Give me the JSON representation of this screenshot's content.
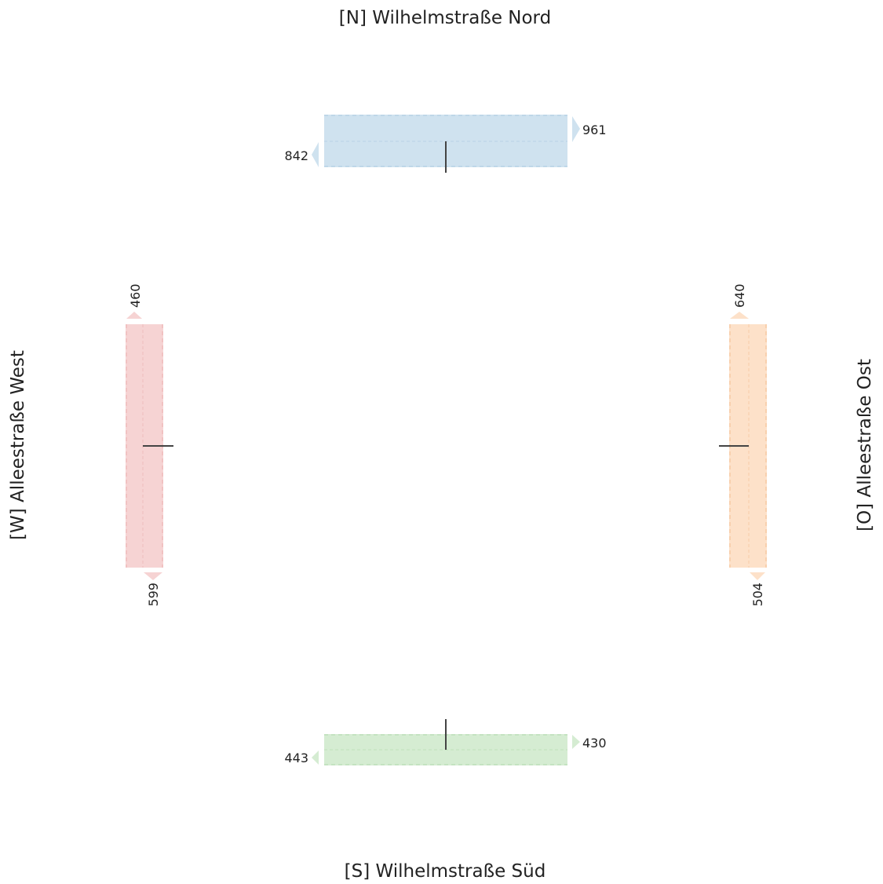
{
  "arms": {
    "north": {
      "title": "[N] Wilhelmstraße Nord",
      "color": "#cfe2ef",
      "edge_color": "#b9d3e6",
      "count_in": "842",
      "count_out": "961"
    },
    "south": {
      "title": "[S] Wilhelmstraße Süd",
      "color": "#d5ecd2",
      "edge_color": "#bfe0bb",
      "count_in": "443",
      "count_out": "430"
    },
    "west": {
      "title": "[W] Alleestraße West",
      "color": "#f6d3d3",
      "edge_color": "#efbcbc",
      "count_in": "460",
      "count_out": "599"
    },
    "east": {
      "title": "[O] Alleestraße Ost",
      "color": "#fde1c9",
      "edge_color": "#f7cba6",
      "count_in": "640",
      "count_out": "504"
    }
  }
}
